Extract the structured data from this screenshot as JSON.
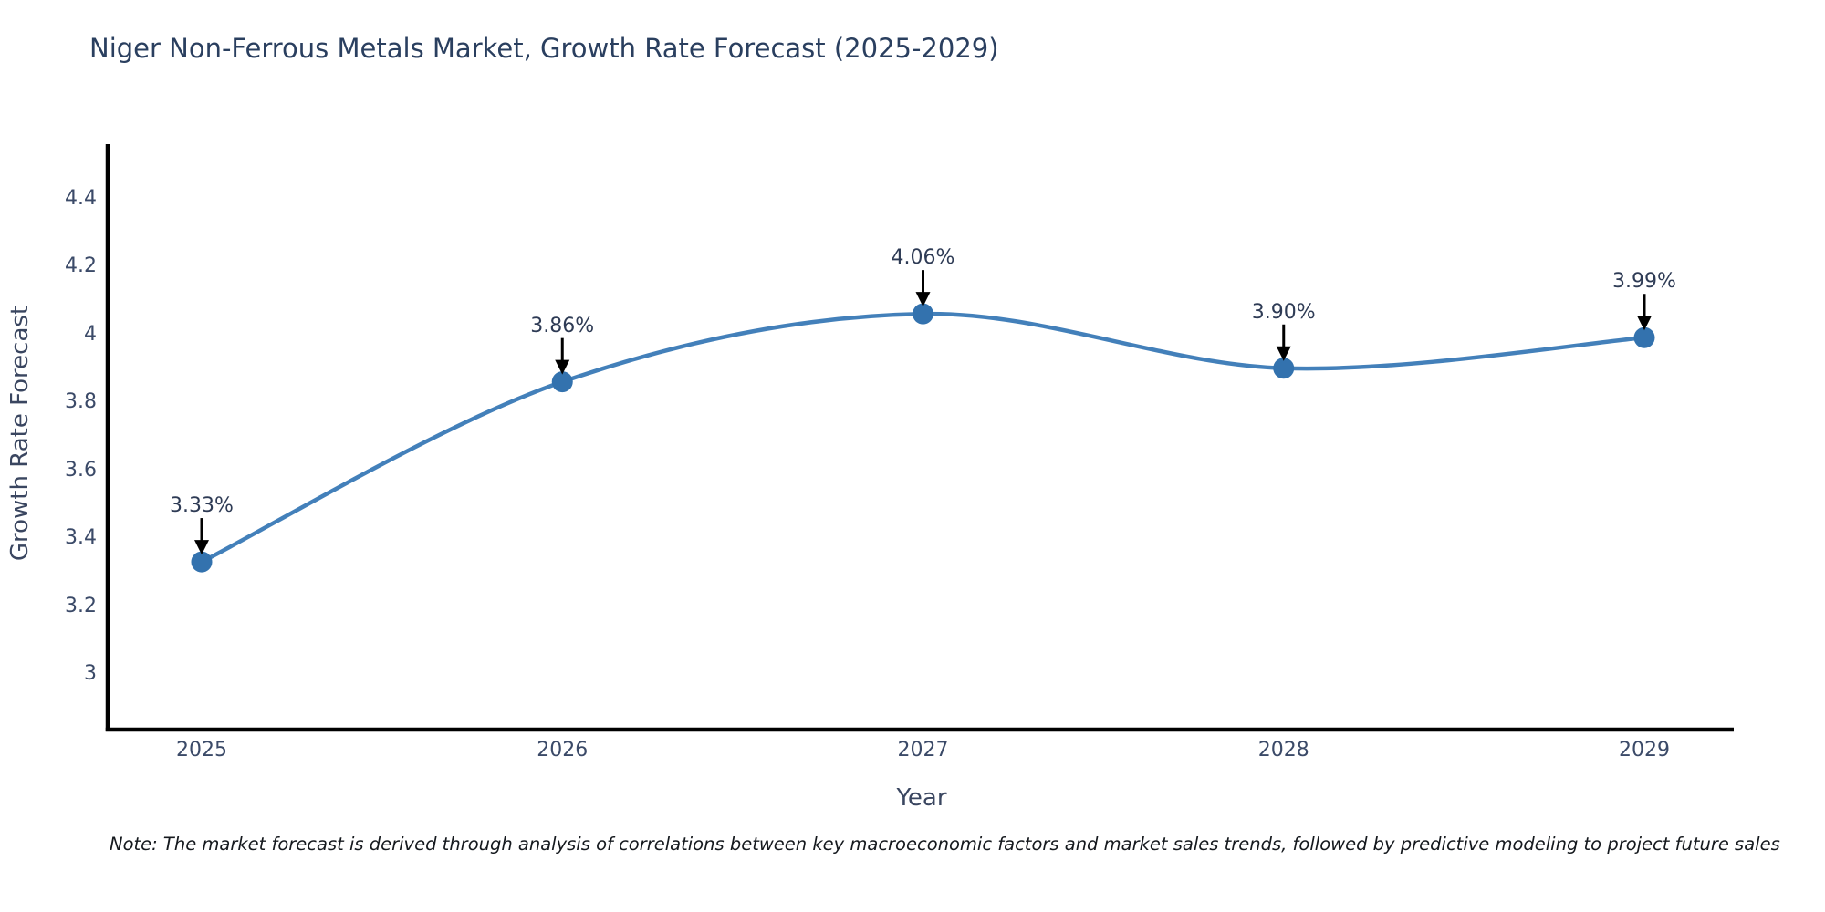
{
  "title": "Niger Non-Ferrous Metals Market, Growth Rate Forecast (2025-2029)",
  "chart_data": {
    "type": "line",
    "categories": [
      "2025",
      "2026",
      "2027",
      "2028",
      "2029"
    ],
    "values": [
      3.33,
      3.86,
      4.06,
      3.9,
      3.99
    ],
    "labels": [
      "3.33%",
      "3.86%",
      "4.06%",
      "3.90%",
      "3.99%"
    ],
    "title": "Niger Non-Ferrous Metals Market, Growth Rate Forecast (2025-2029)",
    "xlabel": "Year",
    "ylabel": "Growth Rate Forecast",
    "ylim": [
      2.84,
      4.56
    ],
    "yticks": [
      "4.4",
      "4.2",
      "4",
      "3.8",
      "3.6",
      "3.4",
      "3.2",
      "3"
    ],
    "grid": false,
    "legend": false,
    "line_color": "#4380ba",
    "marker_color": "#3372ae",
    "axis_color": "#000000",
    "annotation_arrow_color": "#000000"
  },
  "note": "Note: The market forecast is derived through analysis of correlations between key macroeconomic factors and market sales trends, followed by predictive modeling to project future sales"
}
